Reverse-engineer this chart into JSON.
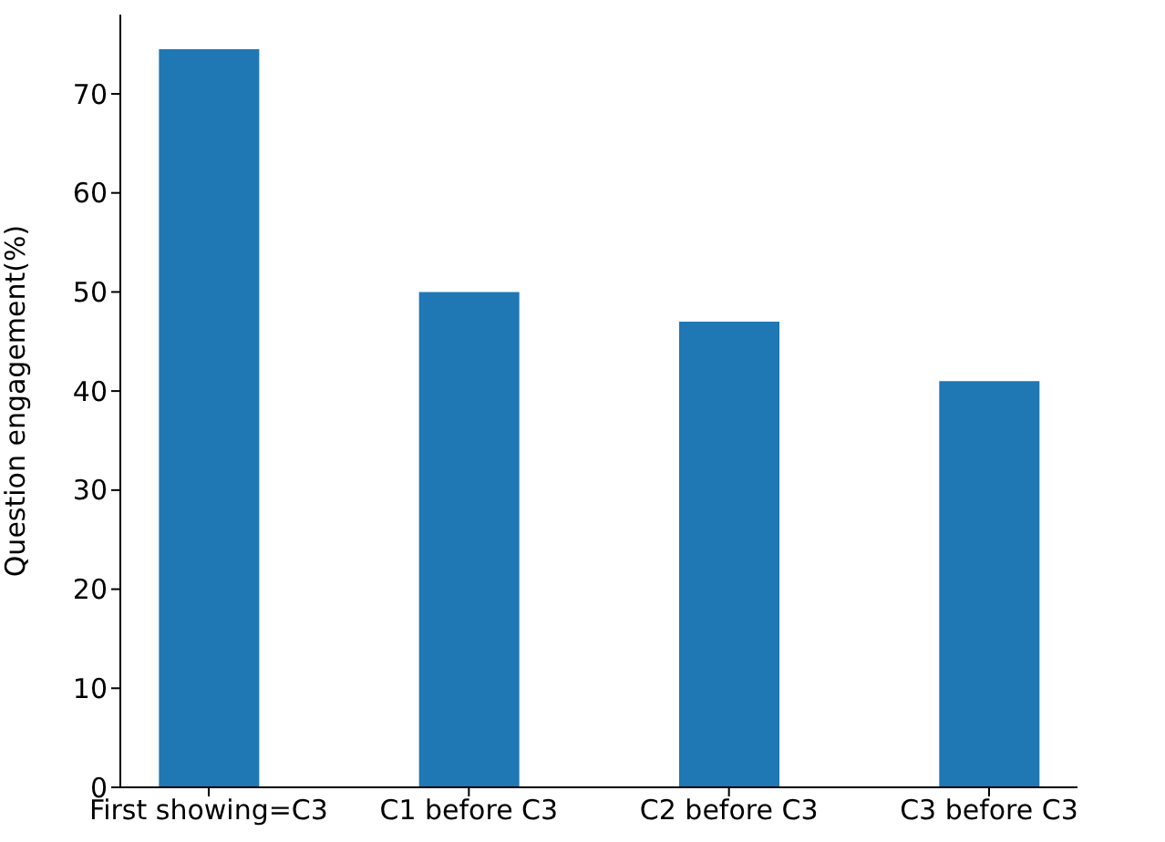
{
  "chart_data": {
    "type": "bar",
    "ylabel": "Question engagement(%)",
    "categories": [
      "First showing=C3",
      "C1 before C3",
      "C2 before C3",
      "C3 before C3"
    ],
    "values": [
      74.5,
      50,
      47,
      41
    ],
    "color": "#1f77b4",
    "ylim": [
      0,
      78
    ],
    "yticks": [
      0,
      10,
      20,
      30,
      40,
      50,
      60,
      70
    ]
  }
}
